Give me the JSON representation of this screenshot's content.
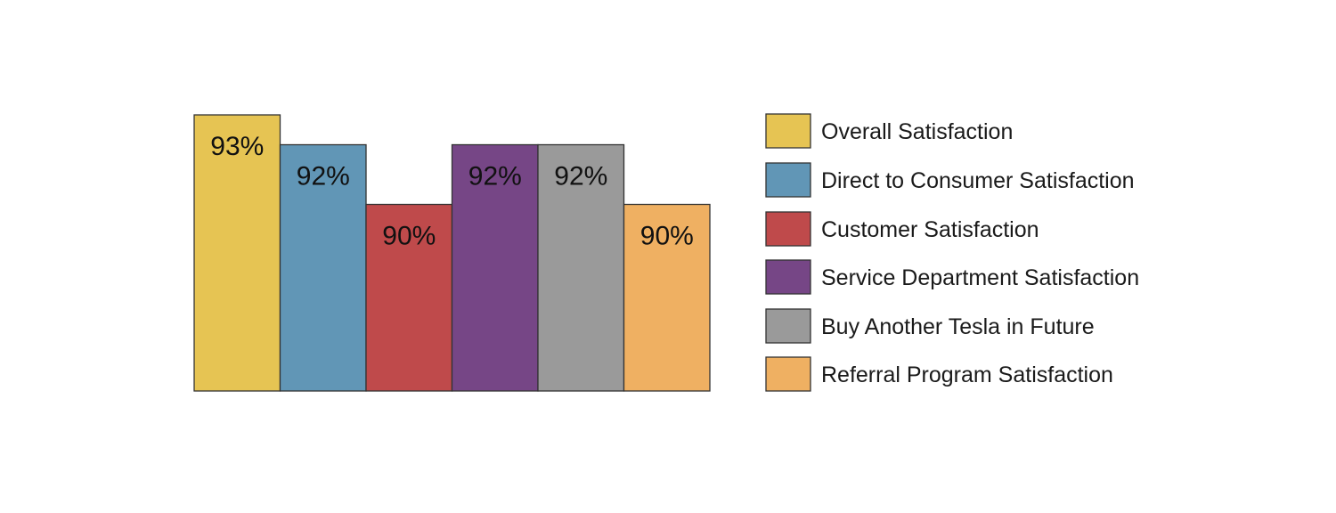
{
  "chart_data": {
    "type": "bar",
    "title": "",
    "xlabel": "",
    "ylabel": "",
    "categories": [
      "Overall Satisfaction",
      "Direct to Consumer Satisfaction",
      "Customer Satisfaction",
      "Service Department Satisfaction",
      "Buy Another Tesla in Future",
      "Referral Program Satisfaction"
    ],
    "values": [
      93,
      92,
      90,
      92,
      92,
      90
    ],
    "value_labels": [
      "93%",
      "92%",
      "90%",
      "92%",
      "92%",
      "90%"
    ],
    "colors": [
      "#e6c453",
      "#6196b6",
      "#bf4a4b",
      "#764686",
      "#9a9a9a",
      "#efb062"
    ],
    "ylim": [
      83.75,
      93
    ],
    "grid": false,
    "axes_visible": false,
    "legend": {
      "placement": "right",
      "entries": [
        "Overall Satisfaction",
        "Direct to Consumer Satisfaction",
        "Customer Satisfaction",
        "Service Department Satisfaction",
        "Buy Another Tesla in Future",
        "Referral Program Satisfaction"
      ]
    }
  }
}
